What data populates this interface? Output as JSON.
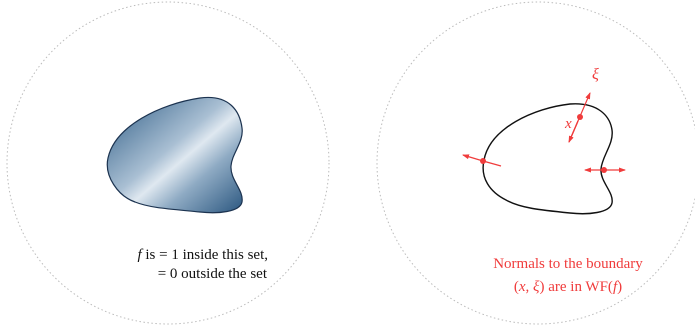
{
  "left_panel": {
    "caption": {
      "line1_var": "f",
      "line1_rest": " is = 1 inside this set,",
      "line2": "= 0 outside the set"
    }
  },
  "right_panel": {
    "labels": {
      "xi": "ξ",
      "x": "x"
    },
    "caption": {
      "line1": "Normals to the boundary",
      "line2_a": "(",
      "line2_x": "x",
      "line2_b": ", ",
      "line2_xi": "ξ",
      "line2_c": ") are in WF(",
      "line2_f": "f",
      "line2_d": ")"
    }
  },
  "colors": {
    "accent": "#f03c3c",
    "boundary": "#111111",
    "blob_dark": "#3e6a93",
    "blob_light": "#dde7ef",
    "circle": "#bbbbbb"
  }
}
